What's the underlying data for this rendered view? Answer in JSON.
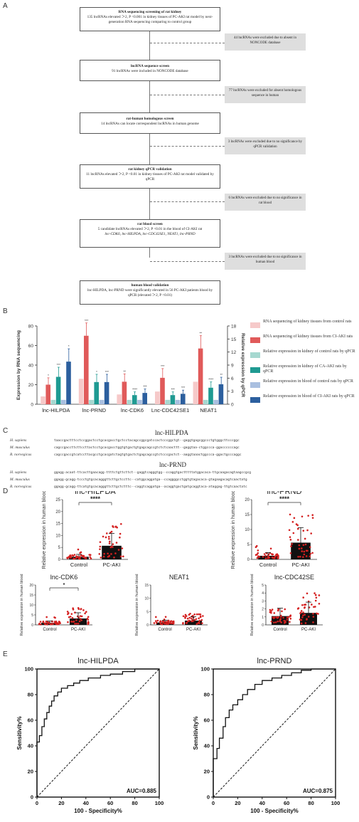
{
  "panel_letters": [
    "A",
    "B",
    "C",
    "D",
    "E"
  ],
  "flow": {
    "box1": {
      "title": "RNA sequencing screening of rat kidney",
      "body": "135 lncRNAs elevated ＞2, P <0.001 in kidney tissues of PC-AKI rat model by next-generation RNA sequencing comparing to control group"
    },
    "ex1": "44 lncRNAs were excluded due to absent in NONCODE database",
    "box2": {
      "title": "lncRNA sequence screen",
      "body": "91 lncRNAs were included in NONCODE database"
    },
    "ex2": "77 lncRNAs were excluded for absent homologous sequence in human",
    "box3": {
      "title": "rat-human homologous screen",
      "body": "14 lncRNAs can locate correspondent lncRNAs in human genome"
    },
    "ex3": "3 lncRNAs were excluded due to no significance by qPCR validation",
    "box4": {
      "title": "rat kidney qPCR validation",
      "body": "11 lncRNAs elevated ＞2, P <0.01 in kidney tissues of PC-AKI rat model validated by qPCR"
    },
    "ex4": "6 lncRNAs were excluded due to no significance in rat blood",
    "box5": {
      "title": "rat blood screen",
      "body": "5 candidate lncRNAs elevated ＞2, P <0.01 in the blood of CI-AKI rat",
      "genes": "lnc-CDK6, lnc-HILPDA, lnc-CDC42SE1, NEAT1, lnc-PRND"
    },
    "ex5": "3 lncRNAs were excluded due to no significance in human blood",
    "box6": {
      "title": "human blood validation",
      "body": "lnc-HILPDA, lnc-PRND were significantly elevated in 56 PC-AKI patients blood by qPCR (elevated ＞2, P <0.01)"
    }
  },
  "chart_data": [
    {
      "type": "bar",
      "panel": "B",
      "ylabel": "Expression by RNA sequencing",
      "y2label": "Relative expression by qPCR",
      "ylim": [
        0,
        80
      ],
      "y2lim": [
        0,
        18
      ],
      "yticks": [
        "0",
        "20",
        "40",
        "60",
        "80"
      ],
      "y2ticks": [
        "0",
        "3",
        "6",
        "9",
        "12",
        "15",
        "18"
      ],
      "categories": [
        "lnc-HILPDA",
        "lnc-PRND",
        "lnc-CDK6",
        "Lnc-CDC42SE1",
        "NEAT1"
      ],
      "series": [
        {
          "name": "RNA sequencing of kidney tissues from control rats",
          "color": "#f6c9c9",
          "axis": "left",
          "values": [
            8,
            26,
            10,
            13,
            23
          ]
        },
        {
          "name": "RNA sequencing of kidney tissues from CI-AKI rats",
          "color": "#e05a5a",
          "axis": "left",
          "values": [
            20,
            70,
            23,
            27,
            57
          ]
        },
        {
          "name": "Relative expression in kidney of control rats by qPCR",
          "color": "#a6d8d0",
          "axis": "right",
          "values": [
            1,
            1,
            1,
            1,
            1
          ]
        },
        {
          "name": "Relative expression in kidney of CA-AKI rats by qPCR",
          "color": "#1f9a92",
          "axis": "right",
          "values": [
            6.3,
            5.1,
            2.1,
            2.1,
            3.8
          ]
        },
        {
          "name": "Relative expression in blood of control rats by qPCR",
          "color": "#a9bfe0",
          "axis": "right",
          "values": [
            1,
            1,
            1,
            1,
            1
          ]
        },
        {
          "name": "Relative expression in blood of CI-AKI rats by qPCR",
          "color": "#2c5f9e",
          "axis": "right",
          "values": [
            9.8,
            5.1,
            2.6,
            2.4,
            4.6
          ]
        }
      ],
      "sig": [
        [
          "*",
          "***",
          "*",
          "**"
        ],
        [
          "***",
          "*",
          "***",
          "**"
        ],
        [
          "**",
          "****",
          "***"
        ],
        [
          "***",
          "***",
          "***"
        ],
        [
          "**",
          "****",
          "**"
        ]
      ]
    },
    {
      "type": "scatter",
      "panel": "D",
      "title": "lnc-HILPDA",
      "ylabel": "Relative expression in human blood",
      "categories": [
        "Control",
        "PC-AKI"
      ],
      "values": [
        1.1,
        5.7
      ],
      "ylim": [
        0,
        25
      ],
      "yticks": [
        "0",
        "5",
        "10",
        "15",
        "20",
        "25"
      ],
      "sig": "****"
    },
    {
      "type": "scatter",
      "panel": "D",
      "title": "lnc-PRND",
      "ylabel": "Relative expression in human blood",
      "categories": [
        "Control",
        "PC-AKI"
      ],
      "values": [
        1.2,
        5.6
      ],
      "ylim": [
        0,
        20
      ],
      "yticks": [
        "0",
        "5",
        "10",
        "15",
        "20"
      ],
      "sig": "****"
    },
    {
      "type": "scatter",
      "panel": "D",
      "title": "lnc-CDK6",
      "ylabel": "Relative expression in human blood",
      "categories": [
        "Control",
        "PC-AKI"
      ],
      "values": [
        1.0,
        3.2
      ],
      "ylim": [
        0,
        20
      ],
      "yticks": [
        "0",
        "5",
        "10",
        "15",
        "20"
      ],
      "sig": "*"
    },
    {
      "type": "scatter",
      "panel": "D",
      "title": "NEAT1",
      "ylabel": "Relative expression in human blood",
      "categories": [
        "Control",
        "PC-AKI"
      ],
      "values": [
        0.9,
        1.6
      ],
      "ylim": [
        0,
        15
      ],
      "yticks": [
        "0",
        "5",
        "10",
        "15"
      ],
      "sig": ""
    },
    {
      "type": "scatter",
      "panel": "D",
      "title": "lnc-CDC42SE",
      "ylabel": "Relative expression in human blood",
      "categories": [
        "Control",
        "PC-AKI"
      ],
      "values": [
        1.1,
        1.5
      ],
      "ylim": [
        0,
        5
      ],
      "yticks": [
        "0",
        "1",
        "2",
        "3",
        "4",
        "5"
      ],
      "sig": ""
    },
    {
      "type": "line",
      "panel": "E",
      "title": "lnc-HILPDA",
      "xlabel": "100 - Specificity%",
      "ylabel": "Sensitivity%",
      "auc": "AUC=0.885",
      "ticks": [
        "0",
        "20",
        "40",
        "60",
        "80",
        "100"
      ],
      "x": [
        0,
        0,
        2,
        2,
        4,
        4,
        6,
        6,
        8,
        8,
        10,
        10,
        12,
        12,
        14,
        14,
        17,
        17,
        20,
        20,
        25,
        25,
        30,
        30,
        35,
        35,
        42,
        42,
        52,
        52,
        60,
        60,
        70,
        70,
        80,
        80,
        100
      ],
      "y": [
        0,
        43,
        43,
        48,
        48,
        55,
        55,
        61,
        61,
        66,
        66,
        71,
        71,
        75,
        75,
        79,
        79,
        82,
        82,
        85,
        85,
        87,
        87,
        89,
        89,
        91,
        91,
        93,
        93,
        95,
        95,
        96,
        96,
        98,
        98,
        100,
        100
      ]
    },
    {
      "type": "line",
      "panel": "E",
      "title": "lnc-PRND",
      "xlabel": "100 - Specificity%",
      "ylabel": "Sensitivity%",
      "auc": "AUC=0.875",
      "ticks": [
        "0",
        "20",
        "40",
        "60",
        "80",
        "100"
      ],
      "x": [
        0,
        0,
        3,
        3,
        5,
        5,
        8,
        8,
        10,
        10,
        13,
        13,
        16,
        16,
        20,
        20,
        24,
        24,
        28,
        28,
        34,
        34,
        40,
        40,
        48,
        48,
        56,
        56,
        64,
        64,
        72,
        72,
        80,
        80,
        100
      ],
      "y": [
        0,
        30,
        30,
        38,
        38,
        46,
        46,
        55,
        55,
        62,
        62,
        68,
        68,
        72,
        72,
        76,
        76,
        80,
        80,
        84,
        84,
        88,
        88,
        91,
        91,
        93,
        93,
        95,
        95,
        97,
        97,
        99,
        99,
        100,
        100
      ]
    }
  ],
  "sequences": {
    "hilpda": {
      "title": "lnc-HILPDA",
      "rows": [
        {
          "species": "H. sapiens",
          "seq": "taaccgactttcctccggactcctgcacgacctgctcctacagccggcgatccactcccggctgt--gaggtgagcggccctgtgggcttcccggc"
        },
        {
          "species": "M. musculus",
          "seq": "cagccgaccttcttccttactcctgcacgacctggtgtgactgtgagcagccgtctctcaacttt--gaggtaa-ctggccca-ggaccccccagc"
        },
        {
          "species": "R. norvegicus",
          "seq": "cagccgaccgtcatccttacgcctgcacgatctagtgtgactctgagcagccgtctcccgactct--aaggtaaactggccca-ggactgcccaggc"
        }
      ]
    },
    "prnd": {
      "title": "lnc-PRND",
      "rows": [
        {
          "species": "H. sapiens",
          "seq": "ggagg-acaat-ttcacttgaacagg-ttttctgttcttct--gaggtcagggtgg--ccaggtgactttttatggacaca-ttgcaagacagtaagccgcg"
        },
        {
          "species": "M. musculus",
          "seq": "ggagg-gcagg-tccctgtgcacagggttcttgctccttc--catggcaggatga--ccaggggcctggtgtagacaca-gtagaagacagtcaactatg"
        },
        {
          "species": "R. norvegicus",
          "seq": "ggagg-gcagg-ttcatgtgcacagggttcttgctctttc--caggtcaggatga--acaggtgactgatgcaggtaca-ataggag-ttgtcaactatc"
        }
      ]
    }
  }
}
